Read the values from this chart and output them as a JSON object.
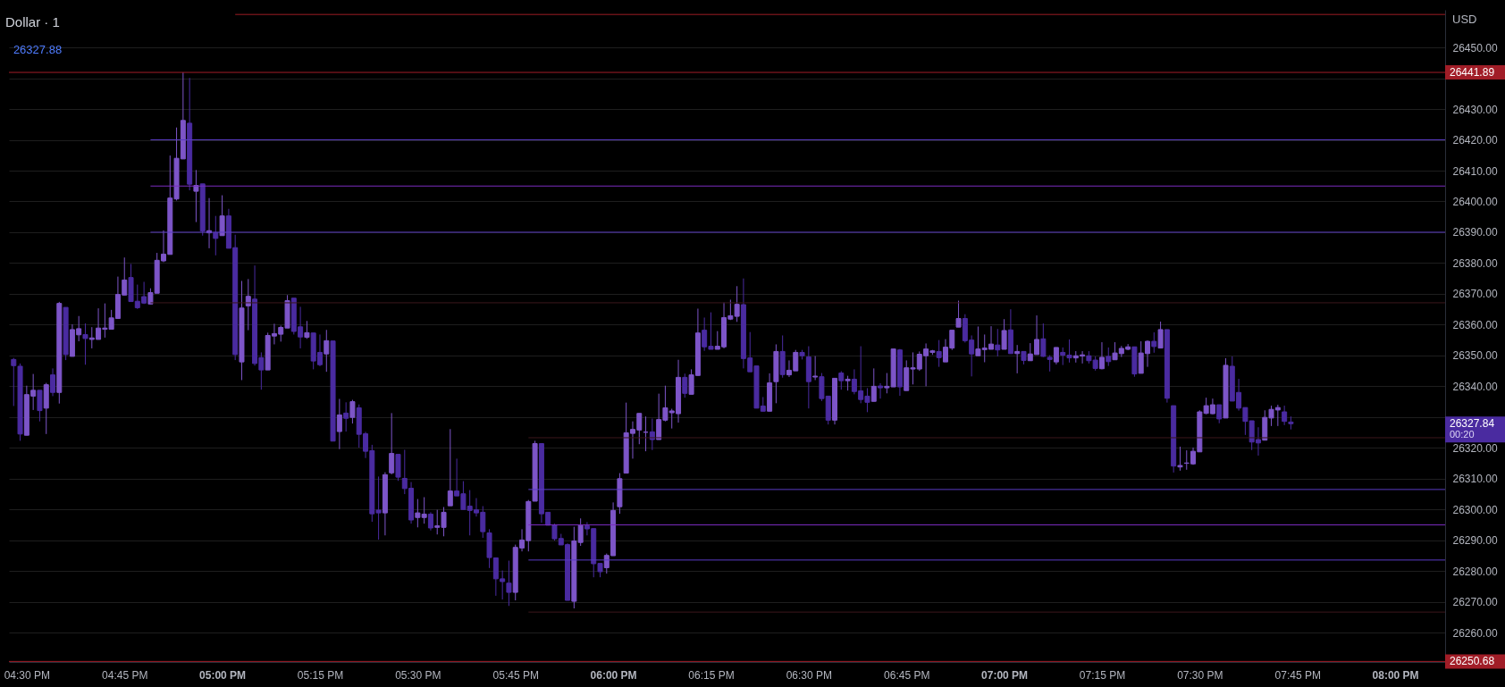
{
  "chart_data": {
    "type": "candlestick",
    "title": "Dollar · 1",
    "x": [
      16.4667,
      16.4833,
      16.5,
      16.5167,
      16.5333,
      16.55,
      16.5667,
      16.5833,
      16.6,
      16.6167,
      16.6333,
      16.65,
      16.6667,
      16.6833,
      16.7,
      16.7167,
      16.7333,
      16.75,
      16.7667,
      16.7833,
      16.8,
      16.8167,
      16.8333,
      16.85,
      16.8667,
      16.8833,
      16.9,
      16.9167,
      16.9333,
      16.95,
      16.9667,
      16.9833,
      17,
      17.0167,
      17.0333,
      17.05,
      17.0667,
      17.0833,
      17.1,
      17.1167,
      17.1333,
      17.15,
      17.1667,
      17.1833,
      17.2,
      17.2167,
      17.2333,
      17.25,
      17.2667,
      17.2833,
      17.3,
      17.3167,
      17.3333,
      17.35,
      17.3667,
      17.3833,
      17.4,
      17.4167,
      17.4333,
      17.45,
      17.4667,
      17.4833,
      17.5,
      17.5167,
      17.5333,
      17.55,
      17.5667,
      17.5833,
      17.6,
      17.6167,
      17.6333,
      17.65,
      17.6667,
      17.6833,
      17.7,
      17.7167,
      17.7333,
      17.75,
      17.7667,
      17.7833,
      17.8,
      17.8167,
      17.8333,
      17.85,
      17.8667,
      17.8833,
      17.9,
      17.9167,
      17.9333,
      17.95,
      17.9667,
      17.9833,
      18,
      18.0167,
      18.0333,
      18.05,
      18.0667,
      18.0833,
      18.1,
      18.1167,
      18.1333,
      18.15,
      18.1667,
      18.1833,
      18.2,
      18.2167,
      18.2333,
      18.25,
      18.2667,
      18.2833,
      18.3,
      18.3167,
      18.3333,
      18.35,
      18.3667,
      18.3833,
      18.4,
      18.4167,
      18.4333,
      18.45,
      18.4667,
      18.4833,
      18.5,
      18.5167,
      18.5333,
      18.55,
      18.5667,
      18.5833,
      18.6,
      18.6167,
      18.6333,
      18.65,
      18.6667,
      18.6833,
      18.7,
      18.7167,
      18.7333,
      18.75,
      18.7667,
      18.7833,
      18.8,
      18.8167,
      18.8333,
      18.85,
      18.8667,
      18.8833,
      18.9,
      18.9167,
      18.9333,
      18.95,
      18.9667,
      18.9833,
      19,
      19.0167,
      19.0333,
      19.05,
      19.0667,
      19.0833,
      19.1,
      19.1167,
      19.1333,
      19.15,
      19.1667,
      19.1833,
      19.2,
      19.2167,
      19.2333,
      19.25,
      19.2667,
      19.2833,
      19.3,
      19.3167,
      19.3333,
      19.35,
      19.3667,
      19.3833,
      19.4,
      19.4167,
      19.4333,
      19.45,
      19.4667,
      19.4833,
      19.5,
      19.5167,
      19.5333,
      19.55,
      19.5667,
      19.5833,
      19.6,
      19.6167,
      19.6333,
      19.65,
      19.6667,
      19.6833,
      19.7,
      19.7167,
      19.7333
    ],
    "ohlc": [
      [
        26348.7,
        26349.2,
        26333.6,
        26346.7
      ],
      [
        26346.5,
        26347.4,
        26322.3,
        26324.5
      ],
      [
        26324.1,
        26340.2,
        26324.1,
        26337.3
      ],
      [
        26336.8,
        26344.0,
        26332.3,
        26338.7
      ],
      [
        26338.7,
        26338.7,
        26328.6,
        26332.1
      ],
      [
        26332.9,
        26341.1,
        26324.5,
        26340.5
      ],
      [
        26343.7,
        26345.8,
        26336.8,
        26338.0
      ],
      [
        26338.0,
        26367.4,
        26334.4,
        26366.9
      ],
      [
        26365.6,
        26365.6,
        26348.5,
        26350.3
      ],
      [
        26349.7,
        26360.1,
        26349.7,
        26358.4
      ],
      [
        26356.7,
        26362.8,
        26354.6,
        26358.7
      ],
      [
        26356.8,
        26360.4,
        26347.0,
        26355.5
      ],
      [
        26355.2,
        26359.2,
        26352.3,
        26355.7
      ],
      [
        26355.2,
        26365.3,
        26355.2,
        26358.9
      ],
      [
        26358.5,
        26366.9,
        26355.8,
        26358.9
      ],
      [
        26358.5,
        26364.8,
        26358.5,
        26362.2
      ],
      [
        26362.0,
        26375.6,
        26362.0,
        26369.8
      ],
      [
        26369.6,
        26381.8,
        26369.6,
        26374.5
      ],
      [
        26375.3,
        26379.7,
        26367.5,
        26367.5
      ],
      [
        26367.6,
        26373.0,
        26365.1,
        26365.5
      ],
      [
        26369.1,
        26373.9,
        26366.7,
        26367.0
      ],
      [
        26366.7,
        26371.8,
        26366.7,
        26370.4
      ],
      [
        26370.2,
        26383.3,
        26370.2,
        26380.9
      ],
      [
        26380.7,
        26390.6,
        26380.3,
        26382.9
      ],
      [
        26382.8,
        26414.9,
        26382.8,
        26401.1
      ],
      [
        26400.8,
        26424.0,
        26400.3,
        26414.0
      ],
      [
        26413.8,
        26441.89,
        26413.8,
        26426.3
      ],
      [
        26425.4,
        26440.1,
        26403.6,
        26405.6
      ],
      [
        26403.3,
        26410.2,
        26393.3,
        26405.2
      ],
      [
        26405.7,
        26405.7,
        26388.9,
        26390.4
      ],
      [
        26389.8,
        26401.1,
        26384.8,
        26390.5
      ],
      [
        26389.9,
        26395.3,
        26382.5,
        26388.0
      ],
      [
        26388.9,
        26402.0,
        26388.9,
        26395.3
      ],
      [
        26395.3,
        26397.6,
        26384.8,
        26384.8
      ],
      [
        26385.0,
        26389.2,
        26348.5,
        26350.3
      ],
      [
        26347.9,
        26374.2,
        26342.0,
        26365.4
      ],
      [
        26366.1,
        26374.8,
        26358.2,
        26369.2
      ],
      [
        26368.3,
        26379.2,
        26346.7,
        26347.4
      ],
      [
        26349.3,
        26351.0,
        26338.9,
        26345.3
      ],
      [
        26345.3,
        26357.4,
        26345.3,
        26356.5
      ],
      [
        26356.3,
        26360.3,
        26353.6,
        26357.1
      ],
      [
        26356.9,
        26359.7,
        26354.5,
        26359.1
      ],
      [
        26358.9,
        26369.6,
        26358.9,
        26367.8
      ],
      [
        26368.6,
        26368.6,
        26356.8,
        26357.8
      ],
      [
        26359.3,
        26365.8,
        26352.3,
        26356.0
      ],
      [
        26355.9,
        26361.2,
        26355.4,
        26357.4
      ],
      [
        26357.3,
        26357.3,
        26345.5,
        26348.2
      ],
      [
        26351.0,
        26356.8,
        26346.5,
        26347.0
      ],
      [
        26350.5,
        26358.3,
        26344.7,
        26354.8
      ],
      [
        26354.7,
        26354.7,
        26322.2,
        26322.2
      ],
      [
        26325.3,
        26335.9,
        26319.6,
        26330.7
      ],
      [
        26331.3,
        26334.8,
        26325.3,
        26329.6
      ],
      [
        26329.9,
        26335.6,
        26327.9,
        26335.0
      ],
      [
        26333.0,
        26334.1,
        26320.1,
        26324.4
      ],
      [
        26324.6,
        26325.2,
        26316.7,
        26318.9
      ],
      [
        26319.1,
        26321.0,
        26296.0,
        26298.6
      ],
      [
        26299.8,
        26310.7,
        26290.2,
        26298.9
      ],
      [
        26298.9,
        26312.1,
        26291.6,
        26311.3
      ],
      [
        26311.9,
        26331.3,
        26311.4,
        26318.2
      ],
      [
        26317.9,
        26317.9,
        26309.3,
        26310.5
      ],
      [
        26310.1,
        26319.4,
        26305.0,
        26306.8
      ],
      [
        26306.9,
        26308.9,
        26295.4,
        26296.6
      ],
      [
        26297.4,
        26303.4,
        26294.2,
        26298.9
      ],
      [
        26297.4,
        26304.0,
        26295.4,
        26298.5
      ],
      [
        26298.5,
        26299.1,
        26293.2,
        26294.0
      ],
      [
        26294.2,
        26299.9,
        26291.9,
        26294.7
      ],
      [
        26294.2,
        26300.8,
        26291.3,
        26299.1
      ],
      [
        26301.2,
        26326.1,
        26301.2,
        26306.0
      ],
      [
        26306.0,
        26316.5,
        26304.4,
        26304.4
      ],
      [
        26305.1,
        26309.2,
        26300.0,
        26300.0
      ],
      [
        26301.1,
        26306.3,
        26291.6,
        26299.7
      ],
      [
        26299.9,
        26303.7,
        26297.7,
        26298.9
      ],
      [
        26299.1,
        26301.1,
        26290.8,
        26292.8
      ],
      [
        26292.4,
        26293.6,
        26281.0,
        26284.4
      ],
      [
        26284.3,
        26284.3,
        26272.0,
        26277.5
      ],
      [
        26277.5,
        26280.2,
        26270.8,
        26276.6
      ],
      [
        26276.1,
        26283.4,
        26268.7,
        26273.1
      ],
      [
        26273.1,
        26288.6,
        26270.5,
        26287.7
      ],
      [
        26287.5,
        26293.6,
        26286.4,
        26290.1
      ],
      [
        26289.9,
        26303.1,
        26286.4,
        26302.6
      ],
      [
        26302.7,
        26322.3,
        26302.7,
        26321.4
      ],
      [
        26321.4,
        26321.4,
        26295.7,
        26298.6
      ],
      [
        26299.1,
        26299.1,
        26294.9,
        26294.9
      ],
      [
        26295.0,
        26295.4,
        26289.9,
        26290.5
      ],
      [
        26290.6,
        26292.1,
        26288.5,
        26288.5
      ],
      [
        26288.6,
        26289.0,
        26270.5,
        26270.5
      ],
      [
        26270.2,
        26294.4,
        26267.9,
        26289.8
      ],
      [
        26289.3,
        26297.1,
        26288.2,
        26294.8
      ],
      [
        26294.7,
        26295.9,
        26291.6,
        26293.7
      ],
      [
        26293.8,
        26293.8,
        26278.0,
        26282.4
      ],
      [
        26282.5,
        26282.5,
        26278.0,
        26279.8
      ],
      [
        26281.1,
        26285.7,
        26279.2,
        26285.1
      ],
      [
        26285.0,
        26302.3,
        26285.0,
        26299.7
      ],
      [
        26300.9,
        26311.8,
        26298.6,
        26310.0
      ],
      [
        26311.8,
        26334.7,
        26311.8,
        26324.9
      ],
      [
        26324.7,
        26328.6,
        26316.5,
        26326.0
      ],
      [
        26325.8,
        26331.2,
        26321.2,
        26331.2
      ],
      [
        26325.1,
        26330.2,
        26318.9,
        26325.1
      ],
      [
        26325.2,
        26329.5,
        26319.3,
        26322.7
      ],
      [
        26322.7,
        26337.6,
        26322.7,
        26329.2
      ],
      [
        26329.0,
        26340.2,
        26328.6,
        26333.0
      ],
      [
        26331.4,
        26332.7,
        26326.3,
        26332.0
      ],
      [
        26331.1,
        26348.6,
        26328.2,
        26342.9
      ],
      [
        26342.9,
        26344.1,
        26336.3,
        26337.7
      ],
      [
        26337.4,
        26345.5,
        26337.4,
        26343.7
      ],
      [
        26343.5,
        26365.2,
        26343.5,
        26357.3
      ],
      [
        26358.2,
        26362.3,
        26351.5,
        26352.8
      ],
      [
        26353.0,
        26364.0,
        26352.0,
        26352.0
      ],
      [
        26352.0,
        26357.9,
        26352.0,
        26353.0
      ],
      [
        26352.8,
        26367.2,
        26352.3,
        26362.3
      ],
      [
        26361.8,
        26368.1,
        26361.5,
        26362.9
      ],
      [
        26362.7,
        26372.5,
        26360.9,
        26366.6
      ],
      [
        26366.5,
        26375.0,
        26345.8,
        26349.0
      ],
      [
        26349.2,
        26357.6,
        26344.7,
        26344.7
      ],
      [
        26346.6,
        26346.6,
        26332.9,
        26332.9
      ],
      [
        26333.6,
        26336.5,
        26331.9,
        26331.9
      ],
      [
        26331.9,
        26344.2,
        26331.9,
        26341.1
      ],
      [
        26341.5,
        26353.6,
        26334.5,
        26351.3
      ],
      [
        26351.3,
        26356.5,
        26342.8,
        26343.8
      ],
      [
        26343.7,
        26348.4,
        26343.0,
        26345.2
      ],
      [
        26345.0,
        26351.8,
        26345.0,
        26351.0
      ],
      [
        26351.0,
        26351.8,
        26348.7,
        26349.9
      ],
      [
        26349.5,
        26353.0,
        26332.8,
        26341.5
      ],
      [
        26343.0,
        26349.8,
        26342.0,
        26343.3
      ],
      [
        26343.1,
        26344.3,
        26335.2,
        26336.0
      ],
      [
        26336.8,
        26336.8,
        26327.6,
        26329.0
      ],
      [
        26329.0,
        26342.6,
        26327.6,
        26342.6
      ],
      [
        26344.3,
        26344.9,
        26338.9,
        26341.8
      ],
      [
        26341.8,
        26343.4,
        26338.6,
        26342.3
      ],
      [
        26342.3,
        26345.5,
        26337.4,
        26338.3
      ],
      [
        26338.5,
        26353.0,
        26334.5,
        26335.7
      ],
      [
        26336.8,
        26339.4,
        26331.6,
        26334.8
      ],
      [
        26335.1,
        26345.8,
        26335.1,
        26340.0
      ],
      [
        26340.1,
        26341.0,
        26336.0,
        26339.5
      ],
      [
        26339.5,
        26344.3,
        26337.7,
        26340.0
      ],
      [
        26339.8,
        26352.1,
        26339.8,
        26352.1
      ],
      [
        26351.8,
        26352.1,
        26336.9,
        26339.8
      ],
      [
        26338.6,
        26348.4,
        26338.6,
        26346.0
      ],
      [
        26345.6,
        26351.0,
        26340.6,
        26346.0
      ],
      [
        26345.6,
        26351.3,
        26345.0,
        26350.4
      ],
      [
        26349.9,
        26353.9,
        26340.0,
        26352.1
      ],
      [
        26351.0,
        26351.8,
        26350.2,
        26351.5
      ],
      [
        26351.3,
        26355.0,
        26346.3,
        26349.3
      ],
      [
        26347.9,
        26355.3,
        26347.9,
        26352.7
      ],
      [
        26352.4,
        26358.2,
        26351.8,
        26358.2
      ],
      [
        26359.2,
        26367.8,
        26359.2,
        26362.0
      ],
      [
        26362.0,
        26363.4,
        26354.2,
        26354.8
      ],
      [
        26355.0,
        26356.5,
        26343.2,
        26350.5
      ],
      [
        26349.9,
        26359.4,
        26349.9,
        26352.1
      ],
      [
        26351.9,
        26356.8,
        26347.8,
        26352.4
      ],
      [
        26352.0,
        26359.5,
        26352.0,
        26353.7
      ],
      [
        26353.4,
        26358.6,
        26349.7,
        26351.8
      ],
      [
        26352.0,
        26361.8,
        26352.0,
        26358.1
      ],
      [
        26358.3,
        26365.0,
        26350.6,
        26350.6
      ],
      [
        26350.6,
        26353.4,
        26344.2,
        26351.3
      ],
      [
        26351.3,
        26351.3,
        26347.1,
        26348.4
      ],
      [
        26348.3,
        26354.0,
        26348.3,
        26350.5
      ],
      [
        26350.3,
        26363.0,
        26350.3,
        26355.2
      ],
      [
        26355.4,
        26360.4,
        26349.5,
        26349.7
      ],
      [
        26349.4,
        26350.1,
        26344.8,
        26348.7
      ],
      [
        26347.9,
        26352.6,
        26347.1,
        26352.6
      ],
      [
        26351.0,
        26352.6,
        26346.9,
        26350.1
      ],
      [
        26350.1,
        26355.2,
        26347.7,
        26349.2
      ],
      [
        26349.2,
        26351.4,
        26347.7,
        26349.9
      ],
      [
        26349.8,
        26351.4,
        26347.4,
        26350.2
      ],
      [
        26349.9,
        26351.4,
        26347.4,
        26348.3
      ],
      [
        26348.5,
        26349.7,
        26345.1,
        26345.8
      ],
      [
        26345.7,
        26354.3,
        26345.5,
        26349.4
      ],
      [
        26349.7,
        26352.6,
        26346.6,
        26348.0
      ],
      [
        26348.6,
        26354.3,
        26348.6,
        26350.8
      ],
      [
        26350.6,
        26353.1,
        26349.5,
        26352.3
      ],
      [
        26352.0,
        26353.7,
        26351.7,
        26352.8
      ],
      [
        26352.8,
        26352.8,
        26343.1,
        26344.0
      ],
      [
        26344.2,
        26354.6,
        26344.2,
        26350.8
      ],
      [
        26350.6,
        26354.9,
        26346.3,
        26354.6
      ],
      [
        26354.6,
        26357.5,
        26350.9,
        26352.9
      ],
      [
        26352.4,
        26361.0,
        26352.4,
        26358.4
      ],
      [
        26358.4,
        26358.4,
        26334.7,
        26336.1
      ],
      [
        26333.7,
        26333.7,
        26312.0,
        26314.1
      ],
      [
        26313.8,
        26320.4,
        26312.6,
        26314.3
      ],
      [
        26315.0,
        26319.2,
        26312.9,
        26315.1
      ],
      [
        26314.8,
        26320.1,
        26314.5,
        26318.9
      ],
      [
        26318.7,
        26332.2,
        26318.7,
        26331.7
      ],
      [
        26331.2,
        26336.3,
        26330.9,
        26333.7
      ],
      [
        26331.1,
        26336.0,
        26330.9,
        26334.0
      ],
      [
        26334.0,
        26334.0,
        26328.0,
        26329.4
      ],
      [
        26329.7,
        26349.1,
        26329.7,
        26346.8
      ],
      [
        26346.5,
        26349.7,
        26335.2,
        26335.2
      ],
      [
        26338.0,
        26342.4,
        26332.1,
        26332.9
      ],
      [
        26333.1,
        26333.1,
        26324.2,
        26328.6
      ],
      [
        26328.8,
        26328.8,
        26319.3,
        26321.9
      ],
      [
        26322.7,
        26326.7,
        26317.5,
        26321.6
      ],
      [
        26322.5,
        26332.2,
        26322.5,
        26329.9
      ],
      [
        26329.7,
        26333.7,
        26327.1,
        26332.5
      ],
      [
        26332.3,
        26334.0,
        26327.1,
        26333.1
      ],
      [
        26331.7,
        26333.7,
        26327.4,
        26328.6
      ],
      [
        26328.4,
        26330.2,
        26326.0,
        26327.84
      ]
    ],
    "colors": [
      "#4a2ba0",
      "#4a2ba0",
      "#7d55c8",
      "#7d55c8",
      "#4a2ba0",
      "#7d55c8",
      "#4a2ba0",
      "#7d55c8",
      "#4a2ba0",
      "#7d55c8",
      "#7d55c8",
      "#4a2ba0",
      "#7d55c8",
      "#7d55c8",
      "#7d55c8",
      "#7d55c8",
      "#7d55c8",
      "#7d55c8",
      "#4a2ba0",
      "#4a2ba0",
      "#4a2ba0",
      "#7d55c8",
      "#7d55c8",
      "#7d55c8",
      "#7d55c8",
      "#7d55c8",
      "#7d55c8",
      "#4a2ba0",
      "#7d55c8",
      "#4a2ba0",
      "#7d55c8",
      "#4a2ba0",
      "#7d55c8",
      "#4a2ba0",
      "#4a2ba0",
      "#7d55c8",
      "#7d55c8",
      "#4a2ba0",
      "#4a2ba0",
      "#7d55c8",
      "#7d55c8",
      "#7d55c8",
      "#7d55c8",
      "#4a2ba0",
      "#4a2ba0",
      "#7d55c8",
      "#4a2ba0",
      "#4a2ba0",
      "#7d55c8",
      "#4a2ba0",
      "#7d55c8",
      "#4a2ba0",
      "#7d55c8",
      "#4a2ba0",
      "#4a2ba0",
      "#4a2ba0",
      "#4a2ba0",
      "#7d55c8",
      "#7d55c8",
      "#4a2ba0",
      "#4a2ba0",
      "#4a2ba0",
      "#7d55c8",
      "#7d55c8",
      "#4a2ba0",
      "#7d55c8",
      "#7d55c8",
      "#7d55c8",
      "#4a2ba0",
      "#4a2ba0",
      "#4a2ba0",
      "#4a2ba0",
      "#4a2ba0",
      "#4a2ba0",
      "#4a2ba0",
      "#4a2ba0",
      "#4a2ba0",
      "#7d55c8",
      "#7d55c8",
      "#7d55c8",
      "#7d55c8",
      "#4a2ba0",
      "#4a2ba0",
      "#4a2ba0",
      "#4a2ba0",
      "#4a2ba0",
      "#7d55c8",
      "#7d55c8",
      "#4a2ba0",
      "#4a2ba0",
      "#4a2ba0",
      "#7d55c8",
      "#7d55c8",
      "#7d55c8",
      "#7d55c8",
      "#7d55c8",
      "#7d55c8",
      "#7d55c8",
      "#4a2ba0",
      "#7d55c8",
      "#7d55c8",
      "#7d55c8",
      "#7d55c8",
      "#4a2ba0",
      "#7d55c8",
      "#7d55c8",
      "#4a2ba0",
      "#4a2ba0",
      "#7d55c8",
      "#7d55c8",
      "#7d55c8",
      "#7d55c8",
      "#4a2ba0",
      "#4a2ba0",
      "#4a2ba0",
      "#4a2ba0",
      "#7d55c8",
      "#7d55c8",
      "#4a2ba0",
      "#7d55c8",
      "#7d55c8",
      "#4a2ba0",
      "#4a2ba0",
      "#7d55c8",
      "#4a2ba0",
      "#4a2ba0",
      "#7d55c8",
      "#4a2ba0",
      "#7d55c8",
      "#4a2ba0",
      "#4a2ba0",
      "#4a2ba0",
      "#7d55c8",
      "#4a2ba0",
      "#7d55c8",
      "#7d55c8",
      "#4a2ba0",
      "#7d55c8",
      "#7d55c8",
      "#7d55c8",
      "#7d55c8",
      "#7d55c8",
      "#4a2ba0",
      "#7d55c8",
      "#7d55c8",
      "#7d55c8",
      "#4a2ba0",
      "#4a2ba0",
      "#7d55c8",
      "#7d55c8",
      "#7d55c8",
      "#4a2ba0",
      "#7d55c8",
      "#4a2ba0",
      "#7d55c8",
      "#4a2ba0",
      "#7d55c8",
      "#7d55c8",
      "#4a2ba0",
      "#4a2ba0",
      "#7d55c8",
      "#4a2ba0",
      "#4a2ba0",
      "#7d55c8",
      "#7d55c8",
      "#4a2ba0",
      "#4a2ba0",
      "#7d55c8",
      "#4a2ba0",
      "#7d55c8",
      "#7d55c8",
      "#7d55c8",
      "#4a2ba0",
      "#7d55c8",
      "#7d55c8",
      "#4a2ba0",
      "#7d55c8",
      "#4a2ba0",
      "#4a2ba0",
      "#7d55c8",
      "#7d55c8",
      "#7d55c8",
      "#7d55c8",
      "#7d55c8",
      "#7d55c8",
      "#4a2ba0",
      "#7d55c8",
      "#4a2ba0",
      "#4a2ba0",
      "#4a2ba0",
      "#4a2ba0",
      "#4a2ba0",
      "#7d55c8",
      "#7d55c8",
      "#7d55c8",
      "#4a2ba0",
      "#4a2ba0"
    ],
    "series": [
      {
        "type": "line",
        "x": [
          17.0333,
          20.1278
        ],
        "values": [
          26460.7,
          26460.7
        ],
        "color": "#9c1c24"
      },
      {
        "type": "line",
        "x": [
          16.8167,
          20.1278
        ],
        "values": [
          26420,
          26420
        ],
        "color": "#5a3cc4"
      },
      {
        "type": "line",
        "x": [
          16.8167,
          20.1278
        ],
        "values": [
          26405,
          26405
        ],
        "color": "#7a2cbf"
      },
      {
        "type": "line",
        "x": [
          16.8167,
          20.1278
        ],
        "values": [
          26390,
          26390
        ],
        "color": "#5a3cc4"
      },
      {
        "type": "line",
        "x": [
          16.8167,
          20.1278
        ],
        "values": [
          26367.1,
          26367.1
        ],
        "color": "#3c171c"
      },
      {
        "type": "line",
        "x": [
          17.7833,
          20.1278
        ],
        "values": [
          26323.3,
          26323.3
        ],
        "color": "#3c171c"
      },
      {
        "type": "line",
        "x": [
          17.7833,
          20.1278
        ],
        "values": [
          26306.5,
          26306.5
        ],
        "color": "#5a3cc4"
      },
      {
        "type": "line",
        "x": [
          17.7833,
          20.1278
        ],
        "values": [
          26295,
          26295
        ],
        "color": "#7a2cbf"
      },
      {
        "type": "line",
        "x": [
          17.7833,
          20.1278
        ],
        "values": [
          26283.6,
          26283.6
        ],
        "color": "#5a3cc4"
      },
      {
        "type": "line",
        "x": [
          17.7833,
          20.1278
        ],
        "values": [
          26266.7,
          26266.7
        ],
        "color": "#3c171c"
      }
    ],
    "xlim": [
      16.4546,
      20.1278
    ],
    "ylim": [
      26250.5,
      26462.2
    ],
    "xticks": [
      {
        "value": 16.5,
        "label": "04:30 PM"
      },
      {
        "value": 16.75,
        "label": "04:45 PM"
      },
      {
        "value": 17,
        "label": "05:00 PM"
      },
      {
        "value": 17.25,
        "label": "05:15 PM"
      },
      {
        "value": 17.5,
        "label": "05:30 PM"
      },
      {
        "value": 17.75,
        "label": "05:45 PM"
      },
      {
        "value": 18,
        "label": "06:00 PM"
      },
      {
        "value": 18.25,
        "label": "06:15 PM"
      },
      {
        "value": 18.5,
        "label": "06:30 PM"
      },
      {
        "value": 18.75,
        "label": "06:45 PM"
      },
      {
        "value": 19,
        "label": "07:00 PM"
      },
      {
        "value": 19.25,
        "label": "07:15 PM"
      },
      {
        "value": 19.5,
        "label": "07:30 PM"
      },
      {
        "value": 19.75,
        "label": "07:45 PM"
      },
      {
        "value": 20,
        "label": "08:00 PM"
      }
    ],
    "yticks": [
      {
        "value": 26260,
        "label": "26260.00"
      },
      {
        "value": 26270,
        "label": "26270.00"
      },
      {
        "value": 26280,
        "label": "26280.00"
      },
      {
        "value": 26290,
        "label": "26290.00"
      },
      {
        "value": 26300,
        "label": "26300.00"
      },
      {
        "value": 26310,
        "label": "26310.00"
      },
      {
        "value": 26320,
        "label": "26320.00"
      },
      {
        "value": 26330,
        "label": null
      },
      {
        "value": 26340,
        "label": "26340.00"
      },
      {
        "value": 26350,
        "label": "26350.00"
      },
      {
        "value": 26360,
        "label": "26360.00"
      },
      {
        "value": 26370,
        "label": "26370.00"
      },
      {
        "value": 26380,
        "label": "26380.00"
      },
      {
        "value": 26390,
        "label": "26390.00"
      },
      {
        "value": 26400,
        "label": "26400.00"
      },
      {
        "value": 26410,
        "label": "26410.00"
      },
      {
        "value": 26420,
        "label": "26420.00"
      },
      {
        "value": 26430,
        "label": "26430.00"
      },
      {
        "value": 26440,
        "label": null
      },
      {
        "value": 26450,
        "label": "26450.00"
      }
    ],
    "ref_lines": [
      {
        "axis": "y",
        "value": 26441.89,
        "label": "26441.89",
        "color": "#a11d27"
      },
      {
        "axis": "y",
        "value": 26250.68,
        "label": "26250.68",
        "color": "#a11d27"
      }
    ],
    "annotations": [
      "26327.88",
      "USD",
      "26327.84",
      "00:20"
    ],
    "grid": "y"
  }
}
